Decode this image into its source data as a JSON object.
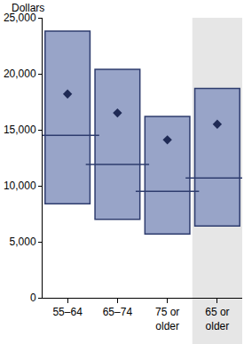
{
  "chart_data": {
    "type": "range_bar",
    "y_label": "Dollars",
    "categories": [
      "55–64",
      "65–74",
      "75 or older",
      "65 or older"
    ],
    "low": [
      8400,
      7000,
      5700,
      6400
    ],
    "median": [
      14500,
      11900,
      9500,
      10700
    ],
    "mean": [
      18200,
      16500,
      14100,
      15500
    ],
    "high": [
      23800,
      20400,
      16200,
      18700
    ],
    "color": "#98a4c8",
    "ylim": [
      0,
      25000
    ],
    "yticks": [
      0,
      {
        "value": 5000,
        "label": "5,000"
      },
      {
        "value": 10000,
        "label": "10,000"
      },
      {
        "value": 15000,
        "label": "15,000"
      },
      {
        "value": 20000,
        "label": "20,000"
      },
      {
        "value": 25000,
        "label": "25,000"
      }
    ],
    "grid": false
  }
}
